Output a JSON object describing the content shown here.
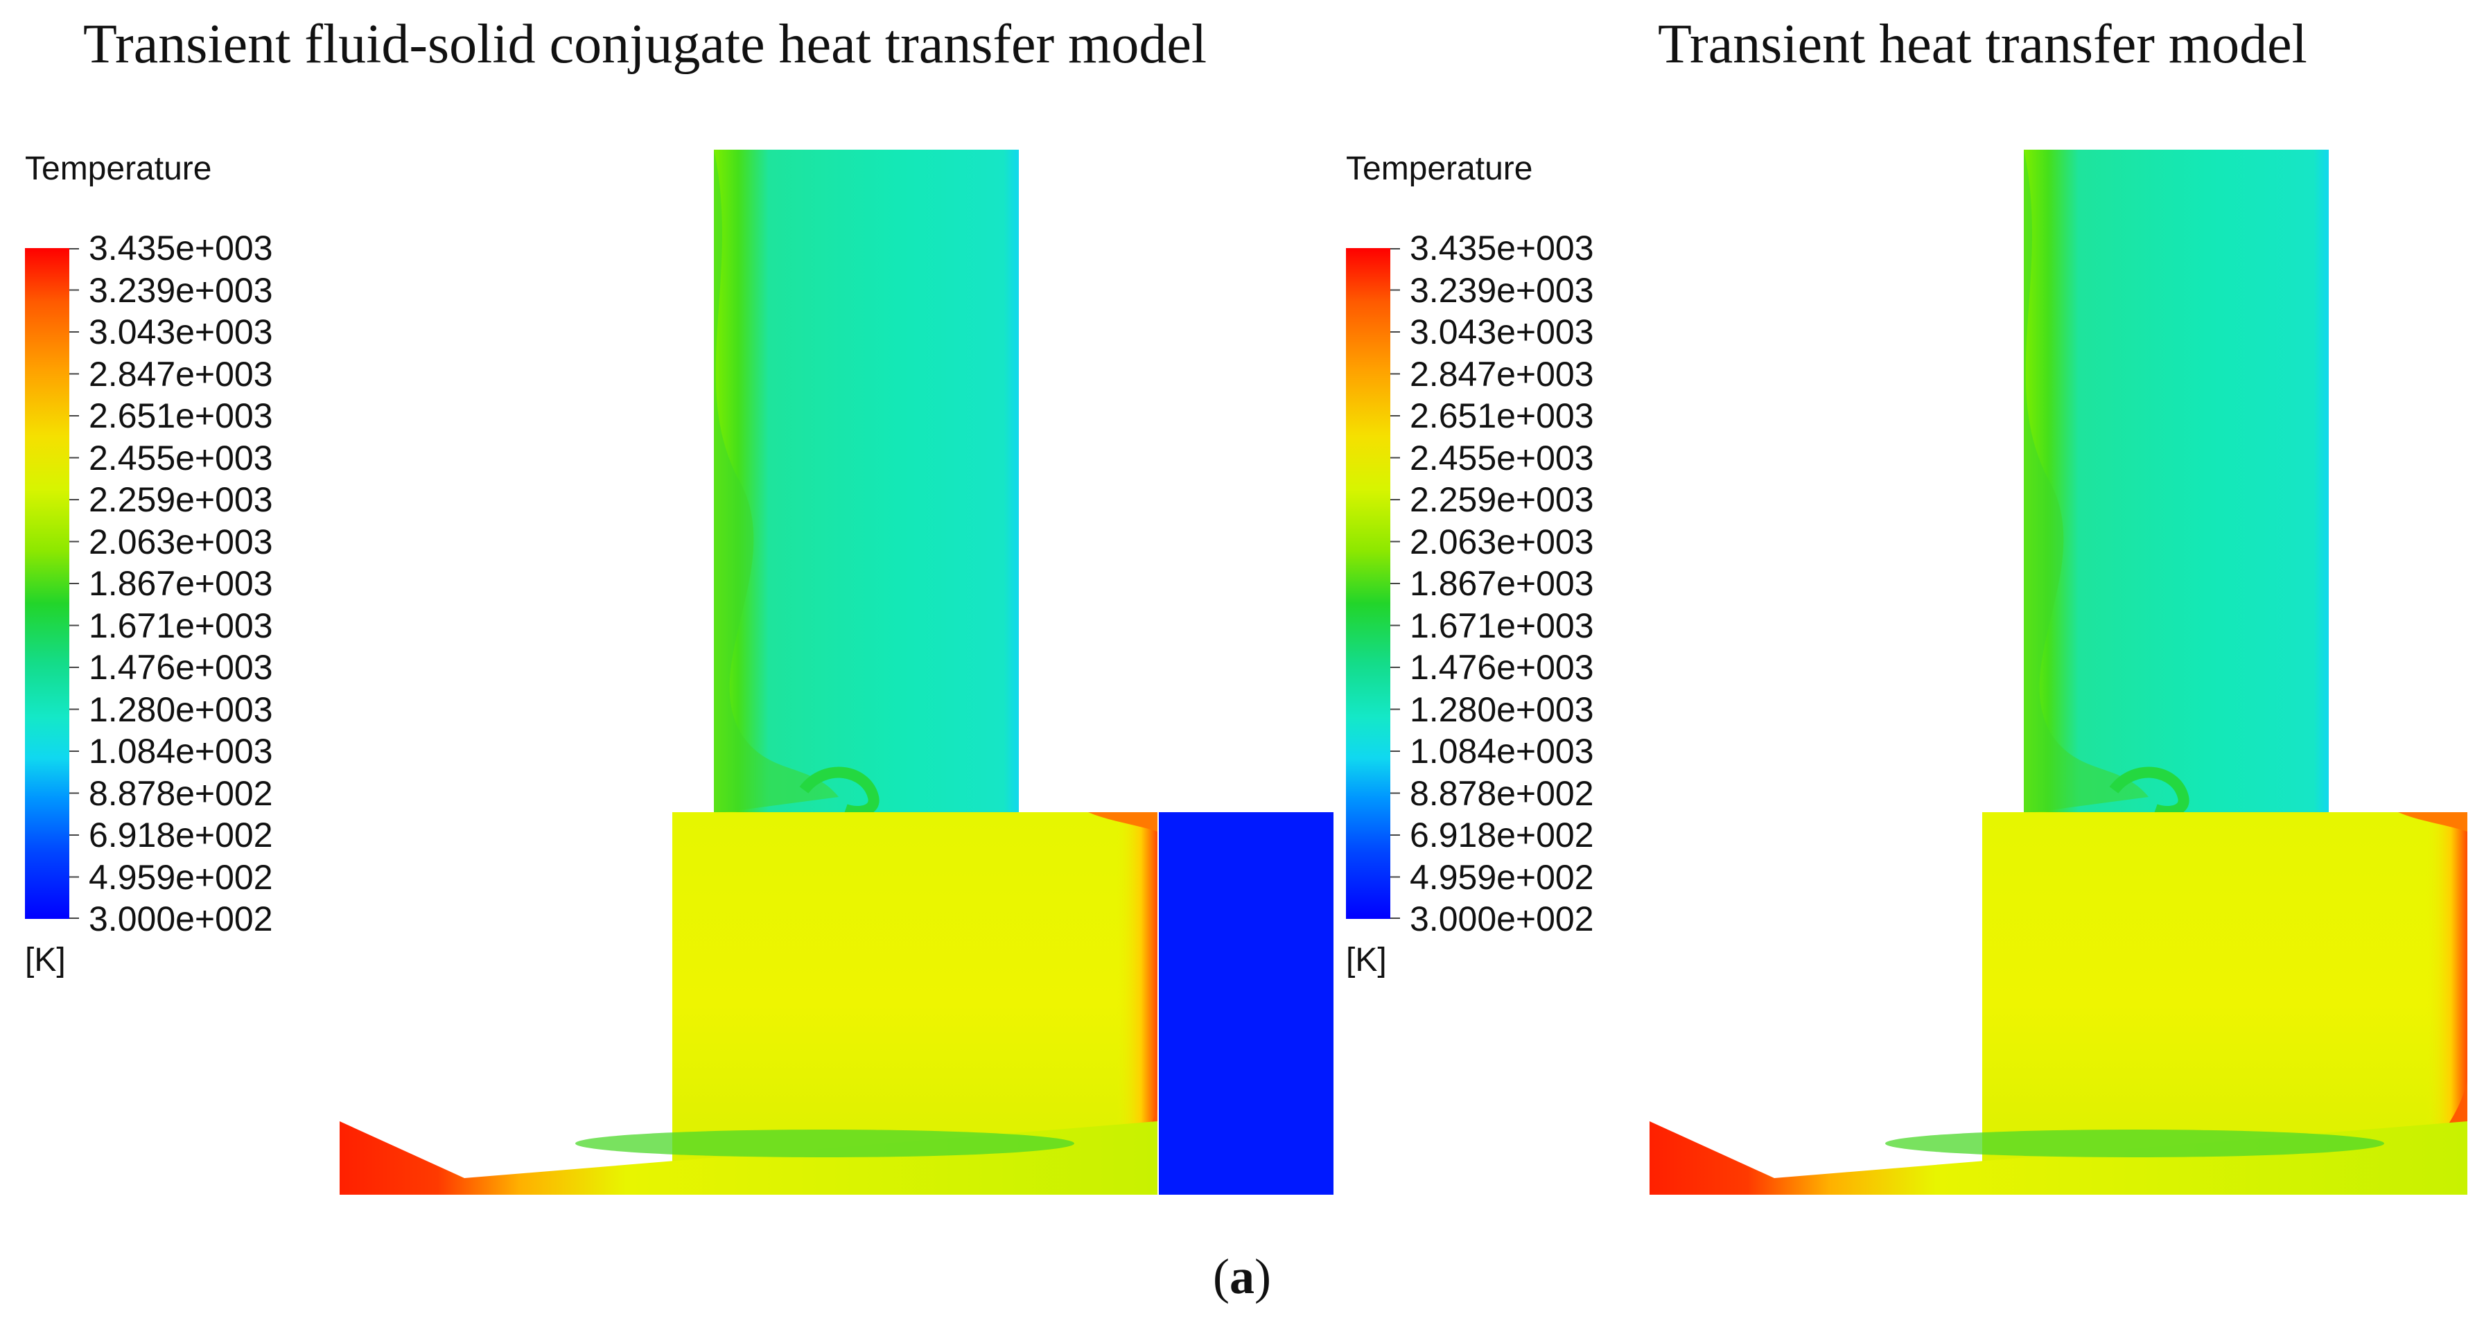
{
  "figure": {
    "caption_open": "(",
    "caption_letter": "a",
    "caption_close": ")"
  },
  "panels": [
    {
      "title": "Transient fluid-solid  conjugate heat transfer model",
      "has_solid_block": true
    },
    {
      "title": "Transient heat transfer model",
      "has_solid_block": false
    }
  ],
  "legend": {
    "title": "Temperature",
    "unit": "[K]",
    "labels": [
      "3.435e+003",
      "3.239e+003",
      "3.043e+003",
      "2.847e+003",
      "2.651e+003",
      "2.455e+003",
      "2.259e+003",
      "2.063e+003",
      "1.867e+003",
      "1.671e+003",
      "1.476e+003",
      "1.280e+003",
      "1.084e+003",
      "8.878e+002",
      "6.918e+002",
      "4.959e+002",
      "3.000e+002"
    ],
    "colormap": [
      "#ff0000",
      "#ffa000",
      "#f5e000",
      "#8ee800",
      "#22d52a",
      "#14dc8a",
      "#10d8f0",
      "#0046ff",
      "#0000ff"
    ]
  },
  "colors": {
    "hot_zone": "#ff2a00",
    "chamber_fill": "#e8f500",
    "upper_duct_fill": "#18e6a8",
    "solid_block": "#0019ff"
  }
}
